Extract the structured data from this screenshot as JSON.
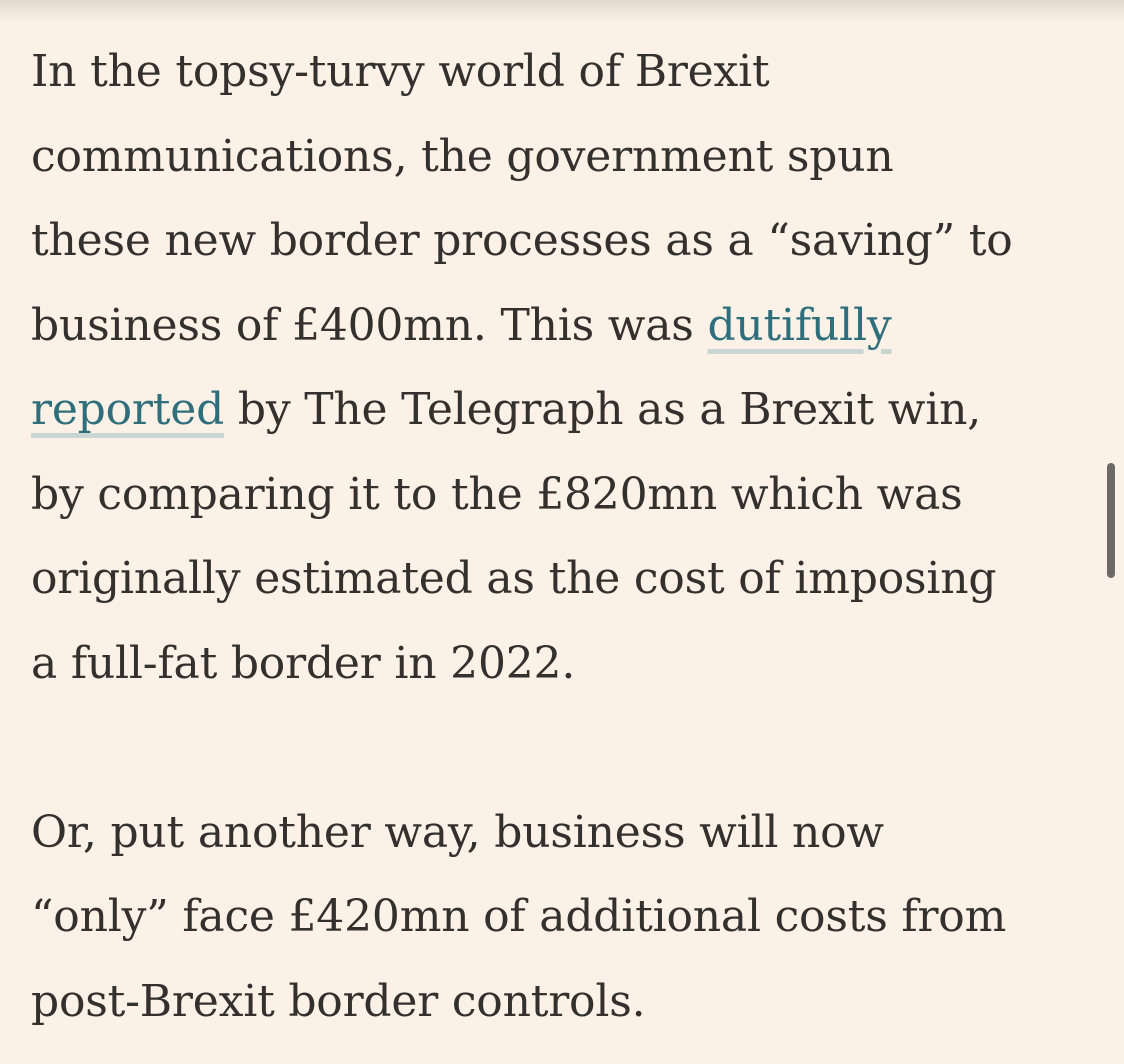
{
  "article": {
    "paragraph1": {
      "line1": "In the topsy-turvy world of Brexit",
      "line2": "communications, the government spun",
      "line3": "these new border processes as a “saving” to",
      "line4_before": "business of £400mn. This was ",
      "link_part1": "dutifully",
      "link_part2": "reported",
      "line5_after": " by The Telegraph as a Brexit win,",
      "line6": "by comparing it to the £820mn which was",
      "line7": "originally estimated as the cost of imposing",
      "line8": "a full-fat border in 2022."
    },
    "paragraph2": {
      "line1": "Or, put another way, business will now",
      "line2": "“only” face £420mn of additional costs from",
      "line3": "post-Brexit border controls."
    }
  },
  "colors": {
    "background": "#fcf1e6",
    "text": "#33302e",
    "link": "#2f6f7c",
    "link_underline": "#c9d6d2",
    "scrollbar": "#6b6a69"
  }
}
